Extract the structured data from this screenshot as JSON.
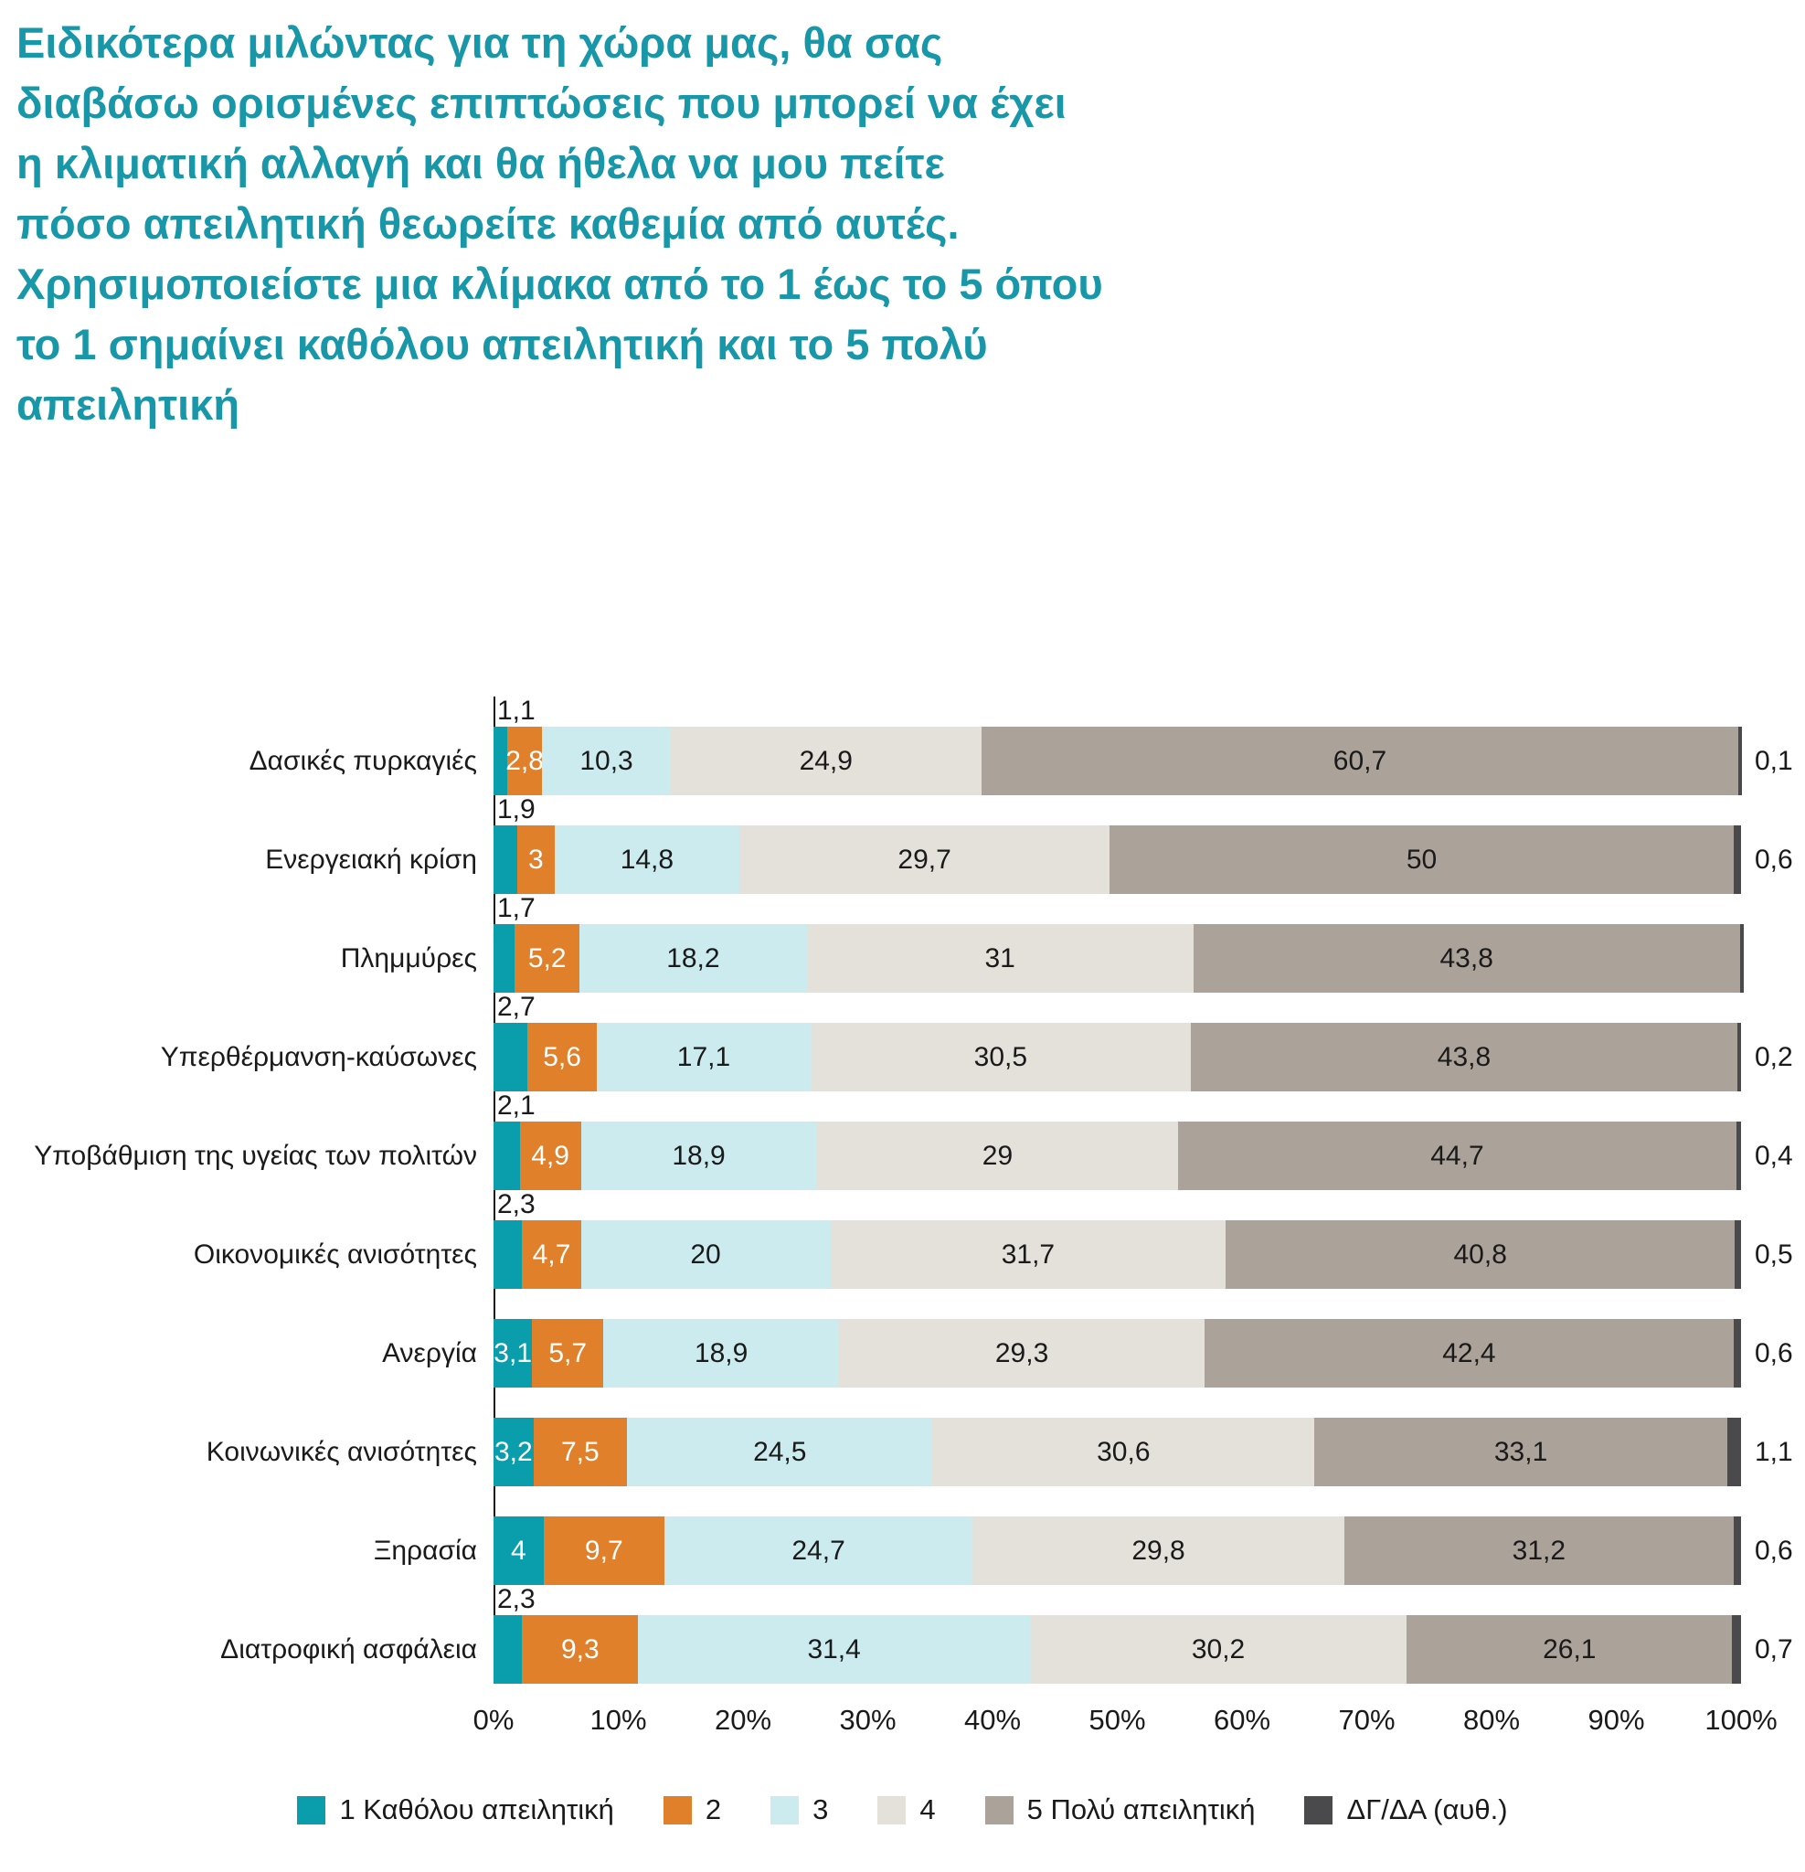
{
  "title": "Ειδικότερα μιλώντας για τη χώρα μας, θα σας\nδιαβάσω ορισμένες επιπτώσεις που μπορεί να έχει\nη κλιματική αλλαγή και θα ήθελα να μου πείτε\nπόσο απειλητική θεωρείτε καθεμία από αυτές.\nΧρησιμοποιείστε μια κλίμακα από το 1 έως το 5 όπου\nτο 1 σημαίνει καθόλου απειλητική και το 5 πολύ\nαπειλητική",
  "chart_data": {
    "type": "bar",
    "stacked": true,
    "orientation": "horizontal",
    "title": "Ειδικότερα μιλώντας για τη χώρα μας, θα σας διαβάσω ορισμένες επιπτώσεις που μπορεί να έχει η κλιματική αλλαγή και θα ήθελα να μου πείτε πόσο απειλητική θεωρείτε καθεμία από αυτές. Χρησιμοποιείστε μια κλίμακα από το 1 έως το 5 όπου το 1 σημαίνει καθόλου απειλητική και το 5 πολύ απειλητική",
    "legend_position": "bottom",
    "grid": false,
    "x_axis": {
      "min": 0,
      "max": 100,
      "ticks": [
        "0%",
        "10%",
        "20%",
        "30%",
        "40%",
        "50%",
        "60%",
        "70%",
        "80%",
        "90%",
        "100%"
      ]
    },
    "categories": [
      "Δασικές πυρκαγιές",
      "Ενεργειακή κρίση",
      "Πλημμύρες",
      "Υπερθέρμανση-καύσωνες",
      "Υποβάθμιση της υγείας των πολιτών",
      "Οικονομικές ανισότητες",
      "Ανεργία",
      "Κοινωνικές ανισότητες",
      "Ξηρασία",
      "Διατροφική ασφάλεια"
    ],
    "series": [
      {
        "name": "1 Καθόλου απειλητική",
        "color": "#0a9dab",
        "label_color": "#ffffff",
        "values": [
          1.1,
          1.9,
          1.7,
          2.7,
          2.1,
          2.3,
          3.1,
          3.2,
          4,
          2.3
        ],
        "labels": [
          "1,1",
          "1,9",
          "1,7",
          "2,7",
          "2,1",
          "2,3",
          "3,1",
          "3,2",
          "4",
          "2,3"
        ]
      },
      {
        "name": "2",
        "color": "#e0802b",
        "label_color": "#ffffff",
        "values": [
          2.8,
          3,
          5.2,
          5.6,
          4.9,
          4.7,
          5.7,
          7.5,
          9.7,
          9.3
        ],
        "labels": [
          "2,8",
          "3",
          "5,2",
          "5,6",
          "4,9",
          "4,7",
          "5,7",
          "7,5",
          "9,7",
          "9,3"
        ]
      },
      {
        "name": "3",
        "color": "#cbebee",
        "label_color": "#1a1a1a",
        "values": [
          10.3,
          14.8,
          18.2,
          17.1,
          18.9,
          20,
          18.9,
          24.5,
          24.7,
          31.4
        ],
        "labels": [
          "10,3",
          "14,8",
          "18,2",
          "17,1",
          "18,9",
          "20",
          "18,9",
          "24,5",
          "24,7",
          "31,4"
        ]
      },
      {
        "name": "4",
        "color": "#e4e1db",
        "label_color": "#1a1a1a",
        "values": [
          24.9,
          29.7,
          31,
          30.5,
          29,
          31.7,
          29.3,
          30.6,
          29.8,
          30.2
        ],
        "labels": [
          "24,9",
          "29,7",
          "31",
          "30,5",
          "29",
          "31,7",
          "29,3",
          "30,6",
          "29,8",
          "30,2"
        ]
      },
      {
        "name": "5 Πολύ απειλητική",
        "color": "#aba399",
        "label_color": "#1a1a1a",
        "values": [
          60.7,
          50,
          43.8,
          43.8,
          44.7,
          40.8,
          42.4,
          33.1,
          31.2,
          26.1
        ],
        "labels": [
          "60,7",
          "50",
          "43,8",
          "43,8",
          "44,7",
          "40,8",
          "42,4",
          "33,1",
          "31,2",
          "26,1"
        ]
      },
      {
        "name": "ΔΓ/ΔΑ (αυθ.)",
        "color": "#4a4a4c",
        "label_color": "#1a1a1a",
        "values": [
          0.1,
          0.6,
          0.1,
          0.2,
          0.4,
          0.5,
          0.6,
          1.1,
          0.6,
          0.7
        ],
        "labels": [
          "0,1",
          "0,6",
          "",
          "0,2",
          "0,4",
          "0,5",
          "0,6",
          "1,1",
          "0,6",
          "0,7"
        ]
      }
    ]
  }
}
